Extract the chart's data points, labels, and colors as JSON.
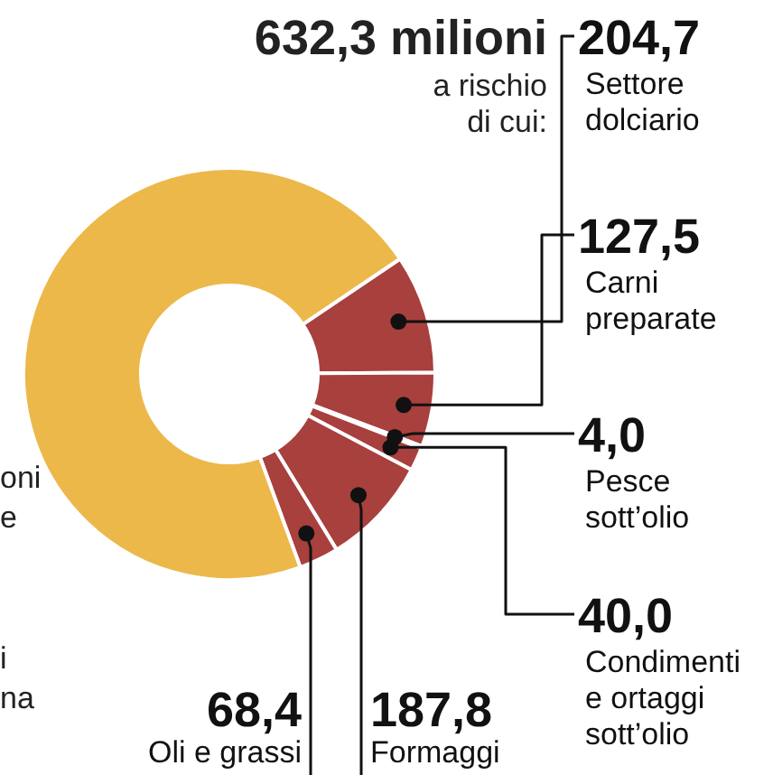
{
  "chart_data": {
    "type": "donut",
    "title": "632,3 milioni",
    "subtitle": "a rischio di cui:",
    "categories": [
      "Settore dolciario",
      "Carni preparate",
      "Pesce sott’olio",
      "Condimenti e ortaggi sott’olio",
      "Formaggi",
      "Oli e grassi",
      null
    ],
    "values": [
      204.7,
      127.5,
      4.0,
      40.0,
      187.8,
      68.4,
      1560
    ],
    "value_labels": [
      "204,7",
      "127,5",
      "4,0",
      "40,0",
      "187,8",
      "68,4",
      null
    ],
    "colors": [
      "#a8403e",
      "#a8403e",
      "#a8403e",
      "#a8403e",
      "#a8403e",
      "#a8403e",
      "#ecb84a"
    ],
    "annotations": [
      "oni",
      "e",
      "i",
      "na"
    ],
    "legend": false
  }
}
